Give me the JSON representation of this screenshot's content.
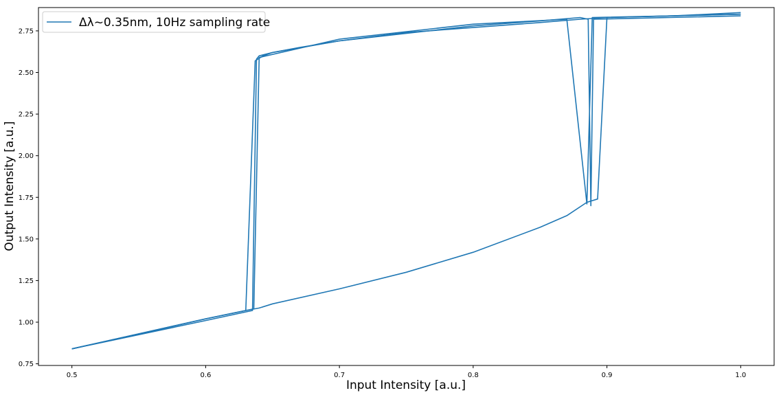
{
  "colors": {
    "series": "#1f77b4",
    "axes": "#000000",
    "legend_border": "#cccccc",
    "background": "#ffffff"
  },
  "chart_data": {
    "type": "line",
    "title": "",
    "xlabel": "Input Intensity [a.u.]",
    "ylabel": "Output Intensity [a.u.]",
    "xlim": [
      0.475,
      1.025
    ],
    "ylim": [
      0.74,
      2.89
    ],
    "xticks": [
      0.5,
      0.6,
      0.7,
      0.8,
      0.9,
      1.0
    ],
    "xtick_labels": [
      "0.5",
      "0.6",
      "0.7",
      "0.8",
      "0.9",
      "1.0"
    ],
    "yticks": [
      0.75,
      1.0,
      1.25,
      1.5,
      1.75,
      2.0,
      2.25,
      2.5,
      2.75
    ],
    "ytick_labels": [
      "0.75",
      "1.00",
      "1.25",
      "1.50",
      "1.75",
      "2.00",
      "2.25",
      "2.50",
      "2.75"
    ],
    "grid": false,
    "legend_position": "top-left",
    "series": [
      {
        "name": "Δλ~0.35nm, 10Hz sampling rate",
        "branches": [
          {
            "x": [
              0.5,
              0.55,
              0.6,
              0.63,
              0.64,
              0.65,
              0.7,
              0.75,
              0.8,
              0.85,
              0.87,
              0.885,
              0.893,
              0.9,
              0.95,
              1.0
            ],
            "y": [
              0.84,
              0.93,
              1.02,
              1.07,
              1.085,
              1.11,
              1.2,
              1.3,
              1.42,
              1.57,
              1.64,
              1.72,
              1.74,
              2.83,
              2.84,
              2.85
            ]
          },
          {
            "x": [
              1.0,
              0.95,
              0.9,
              0.88,
              0.85,
              0.8,
              0.75,
              0.7,
              0.67,
              0.65,
              0.643,
              0.637,
              0.63,
              0.6,
              0.55,
              0.5
            ],
            "y": [
              2.85,
              2.84,
              2.83,
              2.82,
              2.8,
              2.77,
              2.74,
              2.69,
              2.65,
              2.62,
              2.6,
              2.57,
              1.07,
              1.02,
              0.93,
              0.84
            ]
          },
          {
            "x": [
              0.5,
              0.6,
              0.635,
              0.638,
              0.64,
              0.65,
              0.7,
              0.8,
              0.85,
              0.88,
              0.886,
              0.888,
              0.89,
              1.0
            ],
            "y": [
              0.84,
              1.01,
              1.07,
              2.58,
              2.6,
              2.62,
              2.69,
              2.78,
              2.81,
              2.83,
              2.82,
              1.7,
              2.82,
              2.84
            ]
          },
          {
            "x": [
              0.5,
              0.6,
              0.636,
              0.64,
              0.7,
              0.8,
              0.87,
              0.885,
              0.889,
              0.95,
              1.0
            ],
            "y": [
              0.84,
              1.02,
              1.08,
              2.59,
              2.7,
              2.79,
              2.82,
              1.71,
              2.83,
              2.84,
              2.86
            ]
          }
        ]
      }
    ]
  }
}
